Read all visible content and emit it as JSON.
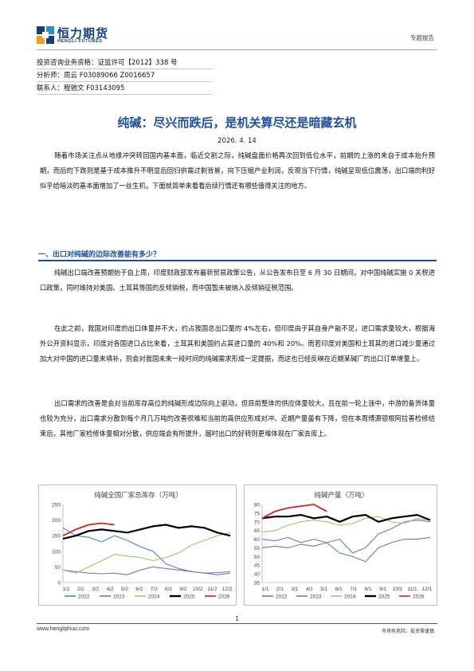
{
  "header": {
    "logo_cn": "恒力期货",
    "logo_en": "HENGLI FUTURES",
    "report_type": "专题报告"
  },
  "info": {
    "license": "投资咨询业务资格：证监许可【2012】338 号",
    "analyst": "分析师：周云 F03089066 Z0016657",
    "contact": "联系人：程驰文 F03143095"
  },
  "title": "纯碱：尽兴而跌后，是机关算尽还是暗藏玄机",
  "date": "2026. 4. 14",
  "intro": "随着市场关注点从地缘冲突转回国内基本面，临近交割之际，纯碱盘面价格再次回到低位水平，前期的上涨的来自于成本抬升预期，而后的下跌则是基于成本推升不明显后回归供需过剩背景，向下压缩产业利润，反观当下行情，纯碱呈现低位震荡，出口端的利好似乎给暗淡的基本面增加了一丝生机，下面就简单来看看后续行情还有哪些值得关注的地方。",
  "section1": {
    "heading": "一、出口对纯碱的边际改善能有多少？",
    "p1": "纯碱出口端改善预期始于自上周，印度财政部发布最新贸易政策公告，从公告发布日至 6 月 30 日期间，对中国纯碱实施 0 关税进口政策，同时维持对美国、土耳其等国的反倾销税，而中国暂未被纳入反倾销征税范围。",
    "p2": "在此之前，我国对印度的出口体量并不大，约占我国总出口量的 4%左右，但印度由于其自身产能不足，进口需求量较大，根据海外公开资料显示，印度对各国进口占比来看，土耳其和美国约占其进口量的 40%和 20%。而若印度对美国和土耳其的进口减少量通过加大对中国的进口量来填补，则会对我国未来一段时间的纯碱需求形成一定提振，而这也已经反映在近期某碱厂的出口订单增量上。",
    "p3": "出口需求的改善是会对当前库存高位的纯碱形成边际向上驱动，但目前整体的供应体量较大，且在前一轮上涨中，中游的备货体量也较为充分，出口需求分散到每个月几万吨的改善很难和当前的高供应形成对冲。近期产量虽有下降，但在本周博源银根阿拉善检修结束后，其他厂家检修体量相对分散，供应端会有所提升，届时出口的好转则更难体现在厂家去库上。"
  },
  "legend_years": [
    "2022",
    "2023",
    "2024",
    "2025",
    "2026"
  ],
  "colors": {
    "y2022": "#4e86c6",
    "y2023": "#8a6bbf",
    "y2024": "#9bcb5e",
    "y2025": "#000000",
    "y2026": "#e0201b",
    "brand": "#1e4fa3"
  },
  "chart_data": [
    {
      "type": "line",
      "title": "纯碱全国厂家总库存（万吨）",
      "xlabel": "",
      "ylabel": "",
      "ylim": [
        0,
        250
      ],
      "yticks": [
        0,
        50,
        100,
        150,
        200,
        250
      ],
      "x_ticks": [
        "1/2",
        "2/2",
        "3/2",
        "4/2",
        "5/2",
        "6/2",
        "7/2",
        "8/2",
        "9/2",
        "10/2",
        "11/2",
        "12/2"
      ],
      "grid": false,
      "legend": "bottom",
      "series": [
        {
          "name": "2022",
          "values": [
            175,
            150,
            145,
            130,
            150,
            135,
            115,
            100,
            60,
            45,
            35,
            30,
            25,
            30
          ]
        },
        {
          "name": "2023",
          "values": [
            40,
            35,
            30,
            28,
            30,
            25,
            40,
            50,
            45,
            40,
            35,
            30,
            32,
            35
          ]
        },
        {
          "name": "2024",
          "values": [
            40,
            30,
            50,
            70,
            90,
            85,
            80,
            70,
            80,
            95,
            120,
            135,
            150,
            160
          ]
        },
        {
          "name": "2025",
          "values": [
            140,
            150,
            165,
            170,
            165,
            160,
            170,
            180,
            185,
            175,
            180,
            175,
            160,
            150
          ]
        },
        {
          "name": "2026",
          "values": [
            150,
            170,
            185,
            190,
            185
          ]
        }
      ]
    },
    {
      "type": "line",
      "title": "纯碱产量（万吨）",
      "xlabel": "",
      "ylabel": "",
      "ylim": [
        35,
        80
      ],
      "yticks": [
        35,
        40,
        45,
        50,
        55,
        60,
        65,
        70,
        75,
        80
      ],
      "x_ticks": [
        "1/1",
        "2/1",
        "3/1",
        "4/1",
        "5/1",
        "6/1",
        "7/1",
        "8/1",
        "9/1",
        "10/1",
        "11/1",
        "12/1"
      ],
      "grid": false,
      "legend": "bottom",
      "series": [
        {
          "name": "2022",
          "values": [
            55,
            56,
            55,
            57,
            56,
            58,
            52,
            50,
            47,
            55,
            58,
            60,
            60,
            61
          ]
        },
        {
          "name": "2023",
          "values": [
            60,
            59,
            61,
            58,
            60,
            58,
            60,
            52,
            55,
            63,
            66,
            70,
            71,
            70
          ]
        },
        {
          "name": "2024",
          "values": [
            64,
            65,
            68,
            70,
            71,
            70,
            68,
            69,
            72,
            73,
            70,
            69,
            72,
            71
          ]
        },
        {
          "name": "2025",
          "values": [
            72,
            73,
            73,
            74,
            72,
            73,
            70,
            73,
            74,
            70,
            72,
            73,
            74,
            71
          ]
        },
        {
          "name": "2026",
          "values": [
            72,
            76,
            78,
            79,
            80,
            76
          ]
        }
      ]
    }
  ],
  "footer": {
    "page": "1",
    "url": "www.henglqihuo.com",
    "motto": "市场有风险，投资需谨慎"
  }
}
